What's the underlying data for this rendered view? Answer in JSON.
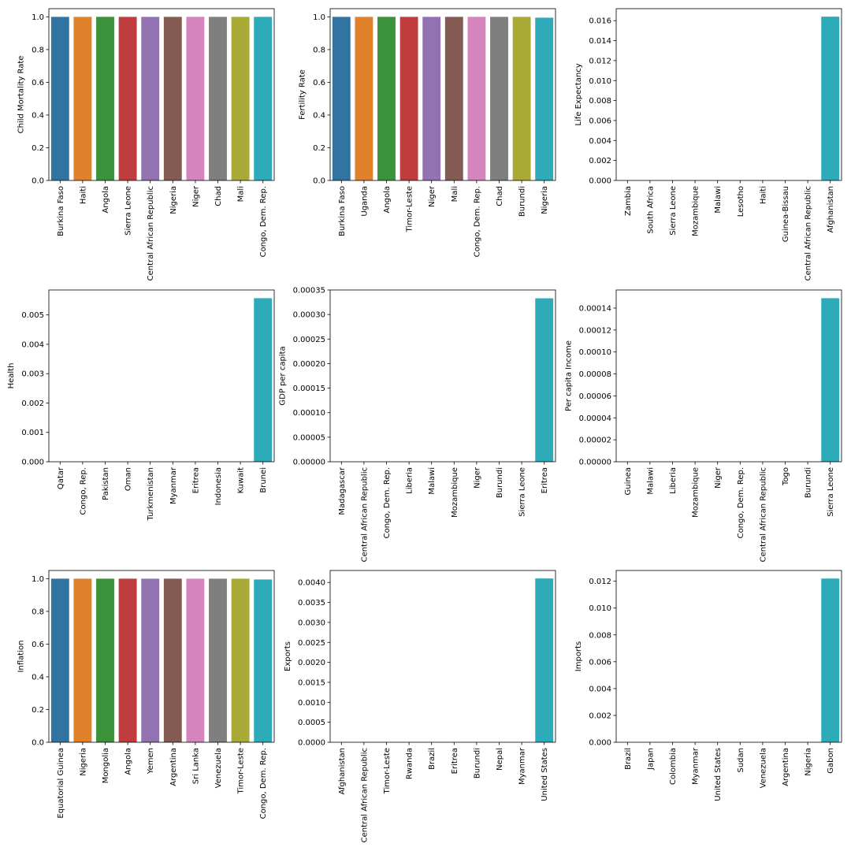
{
  "chart_data": [
    {
      "type": "bar",
      "ylabel": "Child Mortality Rate",
      "ylim": [
        0,
        1.05
      ],
      "yticks": [
        "0.0",
        "0.2",
        "0.4",
        "0.6",
        "0.8",
        "1.0"
      ],
      "categories": [
        "Burkina Faso",
        "Haiti",
        "Angola",
        "Sierra Leone",
        "Central African Republic",
        "Nigeria",
        "Niger",
        "Chad",
        "Mali",
        "Congo, Dem. Rep."
      ],
      "values": [
        1.0,
        1.0,
        1.0,
        1.0,
        1.0,
        1.0,
        1.0,
        1.0,
        1.0,
        1.0
      ]
    },
    {
      "type": "bar",
      "ylabel": "Fertility Rate",
      "ylim": [
        0,
        1.05
      ],
      "yticks": [
        "0.0",
        "0.2",
        "0.4",
        "0.6",
        "0.8",
        "1.0"
      ],
      "categories": [
        "Burkina Faso",
        "Uganda",
        "Angola",
        "Timor-Leste",
        "Niger",
        "Mali",
        "Congo, Dem. Rep.",
        "Chad",
        "Burundi",
        "Nigeria"
      ],
      "values": [
        1.0,
        1.0,
        1.0,
        1.0,
        1.0,
        1.0,
        1.0,
        1.0,
        1.0,
        0.995
      ]
    },
    {
      "type": "bar",
      "ylabel": "Life Expectancy",
      "ylim": [
        0,
        0.0172
      ],
      "yticks": [
        "0.000",
        "0.002",
        "0.004",
        "0.006",
        "0.008",
        "0.010",
        "0.012",
        "0.014",
        "0.016"
      ],
      "categories": [
        "Zambia",
        "South Africa",
        "Sierra Leone",
        "Mozambique",
        "Malawi",
        "Lesotho",
        "Haiti",
        "Guinea-Bissau",
        "Central African Republic",
        "Afghanistan"
      ],
      "values": [
        0,
        0,
        0,
        0,
        0,
        0,
        0,
        0,
        0,
        0.0164
      ]
    },
    {
      "type": "bar",
      "ylabel": "Health",
      "ylim": [
        0,
        0.00585
      ],
      "yticks": [
        "0.000",
        "0.001",
        "0.002",
        "0.003",
        "0.004",
        "0.005"
      ],
      "categories": [
        "Qatar",
        "Congo, Rep.",
        "Pakistan",
        "Oman",
        "Turkmenistan",
        "Myanmar",
        "Eritrea",
        "Indonesia",
        "Kuwait",
        "Brunei"
      ],
      "values": [
        0,
        0,
        0,
        0,
        0,
        0,
        0,
        0,
        0,
        0.00557
      ]
    },
    {
      "type": "bar",
      "ylabel": "GDP per capita",
      "ylim": [
        0,
        0.00035
      ],
      "yticks": [
        "0.00000",
        "0.00005",
        "0.00010",
        "0.00015",
        "0.00020",
        "0.00025",
        "0.00030",
        "0.00035"
      ],
      "categories": [
        "Madagascar",
        "Central African Republic",
        "Congo, Dem. Rep.",
        "Liberia",
        "Malawi",
        "Mozambique",
        "Niger",
        "Burundi",
        "Sierra Leone",
        "Eritrea"
      ],
      "values": [
        0,
        0,
        0,
        0,
        0,
        0,
        0,
        0,
        0,
        0.000333
      ]
    },
    {
      "type": "bar",
      "ylabel": "Per capita Income",
      "ylim": [
        0,
        0.0001565
      ],
      "yticks": [
        "0.00000",
        "0.00002",
        "0.00004",
        "0.00006",
        "0.00008",
        "0.00010",
        "0.00012",
        "0.00014"
      ],
      "categories": [
        "Guinea",
        "Malawi",
        "Liberia",
        "Mozambique",
        "Niger",
        "Congo, Dem. Rep.",
        "Central African Republic",
        "Togo",
        "Burundi",
        "Sierra Leone"
      ],
      "values": [
        0,
        0,
        0,
        0,
        0,
        0,
        0,
        0,
        0,
        0.000149
      ]
    },
    {
      "type": "bar",
      "ylabel": "Inflation",
      "ylim": [
        0,
        1.05
      ],
      "yticks": [
        "0.0",
        "0.2",
        "0.4",
        "0.6",
        "0.8",
        "1.0"
      ],
      "categories": [
        "Equatorial Guinea",
        "Nigeria",
        "Mongolia",
        "Angola",
        "Yemen",
        "Argentina",
        "Sri Lanka",
        "Venezuela",
        "Timor-Leste",
        "Congo, Dem. Rep."
      ],
      "values": [
        1.0,
        1.0,
        1.0,
        1.0,
        1.0,
        1.0,
        1.0,
        1.0,
        1.0,
        0.995
      ]
    },
    {
      "type": "bar",
      "ylabel": "Exports",
      "ylim": [
        0,
        0.0043
      ],
      "yticks": [
        "0.0000",
        "0.0005",
        "0.0010",
        "0.0015",
        "0.0020",
        "0.0025",
        "0.0030",
        "0.0035",
        "0.0040"
      ],
      "categories": [
        "Afghanistan",
        "Central African Republic",
        "Timor-Leste",
        "Rwanda",
        "Brazil",
        "Eritrea",
        "Burundi",
        "Nepal",
        "Myanmar",
        "United States"
      ],
      "values": [
        0,
        0,
        0,
        0,
        0,
        0,
        0,
        0,
        0,
        0.0041
      ]
    },
    {
      "type": "bar",
      "ylabel": "Imports",
      "ylim": [
        0,
        0.0128
      ],
      "yticks": [
        "0.000",
        "0.002",
        "0.004",
        "0.006",
        "0.008",
        "0.010",
        "0.012"
      ],
      "categories": [
        "Brazil",
        "Japan",
        "Colombia",
        "Myanmar",
        "United States",
        "Sudan",
        "Venezuela",
        "Argentina",
        "Nigeria",
        "Gabon"
      ],
      "values": [
        0,
        0,
        0,
        0,
        0,
        0,
        0,
        0,
        0,
        0.0122
      ]
    }
  ],
  "palette": [
    "#3274a1",
    "#e1812c",
    "#3a923a",
    "#c03d3e",
    "#9372b2",
    "#845b53",
    "#d684bd",
    "#7f7f7f",
    "#a9aa35",
    "#2eabb8"
  ]
}
